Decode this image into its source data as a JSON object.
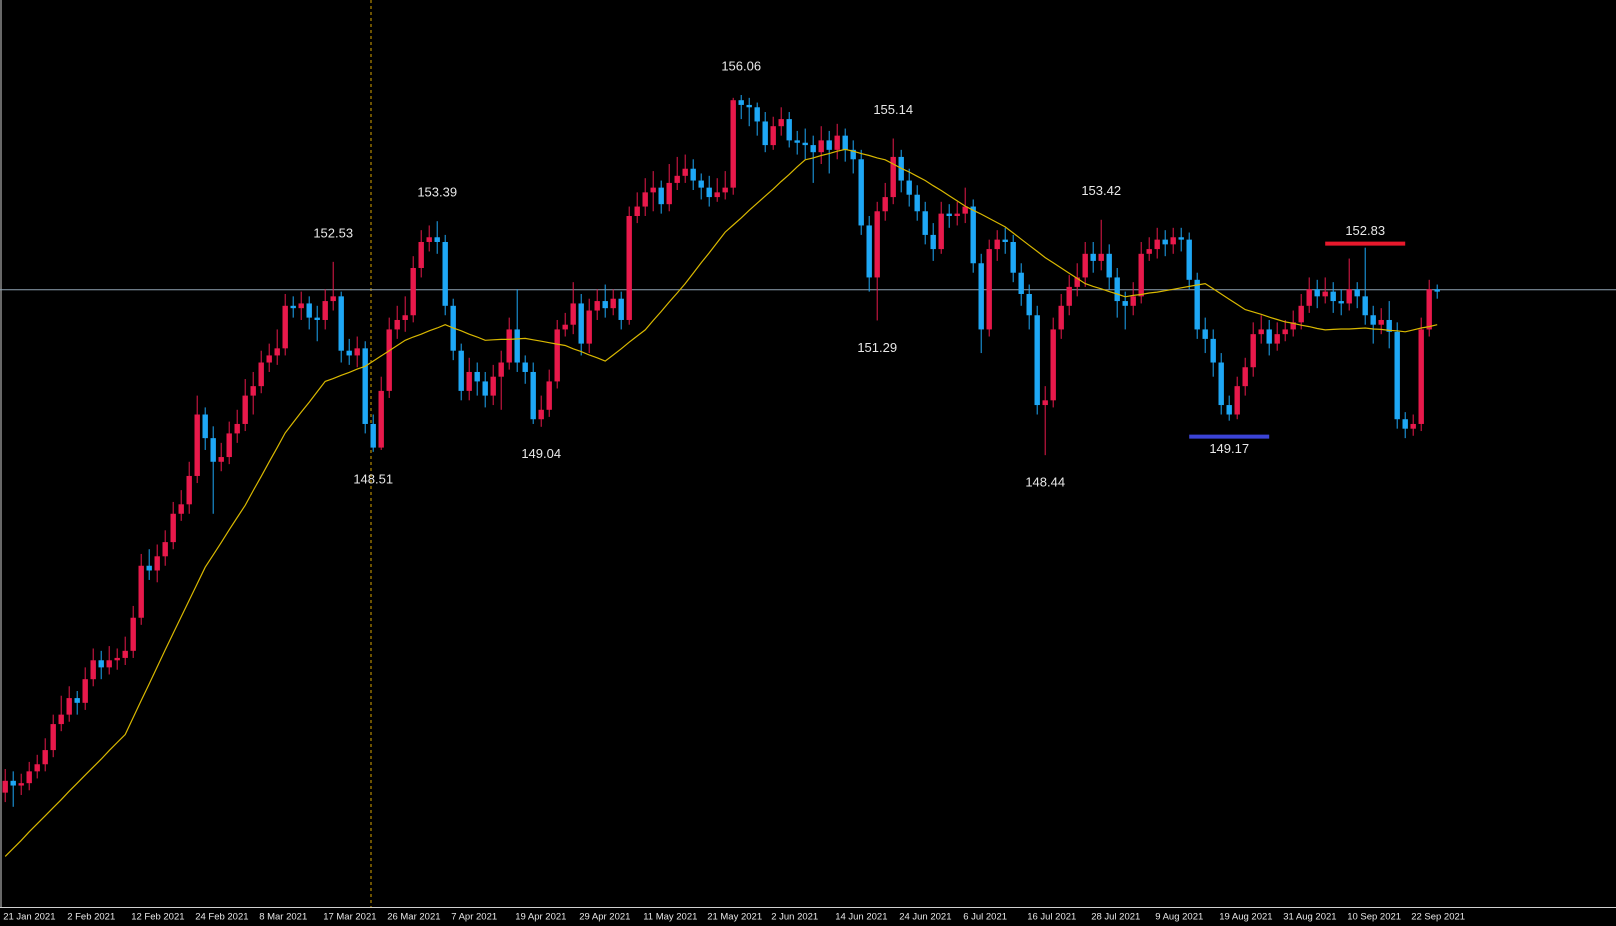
{
  "chart_data": {
    "type": "candlestick",
    "categories": [
      "21 Jan 2021",
      null,
      null,
      null,
      null,
      null,
      null,
      null,
      "2 Feb 2021",
      null,
      null,
      null,
      null,
      null,
      null,
      null,
      "12 Feb 2021",
      null,
      null,
      null,
      null,
      null,
      null,
      null,
      "24 Feb 2021",
      null,
      null,
      null,
      null,
      null,
      null,
      null,
      "8 Mar 2021",
      null,
      null,
      null,
      null,
      null,
      null,
      null,
      "17 Mar 2021",
      null,
      null,
      null,
      null,
      null,
      null,
      null,
      "26 Mar 2021",
      null,
      null,
      null,
      null,
      null,
      null,
      null,
      "7 Apr 2021",
      null,
      null,
      null,
      null,
      null,
      null,
      null,
      "19 Apr 2021",
      null,
      null,
      null,
      null,
      null,
      null,
      null,
      "29 Apr 2021",
      null,
      null,
      null,
      null,
      null,
      null,
      null,
      "11 May 2021",
      null,
      null,
      null,
      null,
      null,
      null,
      null,
      "21 May 2021",
      null,
      null,
      null,
      null,
      null,
      null,
      null,
      "2 Jun 2021",
      null,
      null,
      null,
      null,
      null,
      null,
      null,
      "14 Jun 2021",
      null,
      null,
      null,
      null,
      null,
      null,
      null,
      "24 Jun 2021",
      null,
      null,
      null,
      null,
      null,
      null,
      null,
      "6 Jul 2021",
      null,
      null,
      null,
      null,
      null,
      null,
      null,
      "16 Jul 2021",
      null,
      null,
      null,
      null,
      null,
      null,
      null,
      "28 Jul 2021",
      null,
      null,
      null,
      null,
      null,
      null,
      null,
      "9 Aug 2021",
      null,
      null,
      null,
      null,
      null,
      null,
      null,
      "19 Aug 2021",
      null,
      null,
      null,
      null,
      null,
      null,
      null,
      "31 Aug 2021",
      null,
      null,
      null,
      null,
      null,
      null,
      null,
      "10 Sep 2021",
      null,
      null,
      null,
      null,
      null,
      null,
      null,
      "22 Sep 2021",
      null,
      null,
      null
    ],
    "open": [
      141.3,
      141.55,
      141.45,
      141.5,
      141.75,
      141.9,
      142.2,
      142.75,
      142.95,
      143.3,
      143.2,
      143.7,
      144.1,
      143.95,
      144.1,
      144.15,
      144.3,
      145.0,
      146.1,
      146.0,
      146.3,
      146.6,
      147.2,
      147.4,
      148.0,
      149.3,
      148.8,
      148.3,
      148.4,
      148.9,
      149.1,
      149.7,
      149.9,
      150.4,
      150.55,
      150.7,
      151.6,
      151.55,
      151.65,
      151.35,
      151.3,
      151.7,
      151.8,
      150.65,
      150.55,
      150.7,
      149.1,
      148.6,
      149.8,
      151.1,
      151.3,
      151.4,
      152.4,
      152.95,
      153.05,
      152.95,
      151.6,
      150.65,
      149.8,
      150.2,
      150.0,
      149.7,
      150.1,
      150.4,
      151.1,
      150.4,
      150.2,
      149.2,
      149.4,
      150.0,
      151.1,
      151.2,
      151.65,
      150.8,
      151.5,
      151.7,
      151.55,
      151.75,
      151.3,
      153.5,
      153.7,
      154.0,
      154.1,
      153.75,
      154.2,
      154.35,
      154.5,
      154.25,
      154.1,
      153.9,
      154.0,
      154.1,
      155.95,
      155.85,
      155.8,
      155.5,
      155.0,
      155.4,
      155.55,
      155.1,
      155.05,
      155.0,
      154.85,
      155.1,
      154.9,
      155.2,
      154.9,
      154.7,
      153.3,
      152.2,
      153.6,
      153.9,
      154.75,
      154.25,
      153.95,
      153.6,
      153.1,
      152.8,
      153.55,
      153.5,
      153.55,
      153.7,
      152.5,
      151.1,
      152.8,
      153.0,
      152.95,
      152.3,
      151.85,
      151.4,
      149.5,
      149.6,
      151.1,
      151.6,
      152.0,
      152.2,
      152.7,
      152.55,
      152.7,
      152.2,
      151.7,
      151.6,
      151.8,
      152.7,
      152.8,
      153.0,
      152.9,
      153.05,
      153.0,
      152.15,
      151.1,
      150.9,
      150.4,
      149.5,
      149.3,
      149.9,
      150.3,
      151.0,
      151.1,
      150.8,
      151.0,
      151.1,
      151.25,
      151.6,
      151.95,
      151.8,
      151.9,
      151.7,
      151.65,
      151.95,
      151.8,
      151.4,
      151.2,
      151.3,
      151.05,
      149.2,
      149.0,
      149.1,
      151.1,
      151.95
    ],
    "high": [
      141.8,
      141.75,
      141.7,
      141.95,
      142.1,
      142.45,
      142.95,
      143.35,
      143.55,
      143.45,
      143.95,
      144.35,
      144.3,
      144.4,
      144.35,
      144.6,
      145.25,
      146.35,
      146.45,
      146.55,
      146.85,
      147.45,
      147.7,
      148.3,
      149.7,
      149.45,
      149.05,
      148.7,
      149.15,
      149.4,
      150.05,
      150.2,
      150.65,
      150.8,
      151.1,
      151.85,
      151.8,
      151.9,
      151.8,
      151.6,
      151.95,
      152.53,
      151.9,
      150.9,
      150.95,
      150.85,
      149.3,
      150.1,
      151.35,
      151.6,
      151.8,
      152.65,
      153.2,
      153.3,
      153.39,
      153.1,
      151.75,
      150.8,
      150.5,
      150.4,
      150.2,
      150.35,
      150.65,
      151.35,
      151.95,
      150.55,
      150.4,
      149.7,
      150.25,
      151.3,
      151.45,
      152.1,
      151.85,
      151.75,
      151.95,
      152.05,
      151.95,
      151.9,
      153.7,
      154.0,
      154.3,
      154.45,
      154.25,
      154.6,
      154.75,
      154.8,
      154.7,
      154.4,
      154.35,
      154.3,
      154.45,
      156.0,
      156.06,
      156.0,
      155.9,
      155.7,
      155.6,
      155.8,
      155.7,
      155.3,
      155.35,
      155.2,
      155.4,
      155.3,
      155.45,
      155.35,
      155.1,
      154.9,
      153.5,
      153.8,
      154.2,
      155.14,
      154.9,
      154.5,
      154.15,
      153.8,
      153.35,
      153.8,
      153.75,
      153.8,
      154.1,
      153.85,
      152.7,
      153.0,
      153.2,
      153.25,
      153.1,
      152.5,
      152.05,
      151.6,
      149.9,
      151.35,
      151.85,
      152.25,
      152.5,
      152.95,
      152.95,
      153.42,
      152.9,
      152.4,
      151.9,
      152.1,
      152.95,
      153.05,
      153.25,
      153.2,
      153.25,
      153.25,
      153.15,
      152.3,
      151.35,
      151.1,
      150.6,
      149.7,
      150.1,
      150.5,
      151.25,
      151.4,
      151.3,
      151.25,
      151.3,
      151.5,
      151.85,
      152.2,
      152.15,
      152.2,
      152.1,
      151.95,
      152.6,
      152.1,
      152.83,
      151.6,
      151.55,
      151.7,
      151.25,
      149.35,
      149.3,
      151.35,
      152.15,
      152.05
    ],
    "low": [
      141.1,
      141.0,
      141.25,
      141.35,
      141.6,
      141.75,
      142.05,
      142.6,
      142.8,
      142.95,
      143.05,
      143.55,
      143.7,
      143.8,
      143.9,
      144.0,
      144.15,
      144.85,
      145.8,
      145.75,
      146.1,
      146.45,
      147.05,
      147.2,
      147.85,
      148.55,
      147.2,
      148.1,
      148.25,
      148.7,
      148.95,
      149.3,
      149.75,
      150.2,
      150.35,
      150.55,
      151.35,
      151.3,
      151.1,
      150.85,
      151.1,
      151.5,
      150.4,
      150.35,
      150.3,
      148.9,
      148.51,
      148.55,
      149.65,
      150.9,
      151.05,
      151.25,
      152.2,
      152.75,
      152.7,
      151.4,
      150.45,
      149.6,
      149.6,
      149.7,
      149.45,
      149.5,
      149.4,
      150.25,
      150.2,
      149.95,
      149.1,
      149.04,
      149.25,
      149.85,
      150.95,
      151.0,
      150.55,
      150.6,
      151.3,
      151.35,
      151.4,
      151.1,
      151.2,
      153.35,
      153.5,
      153.6,
      153.55,
      153.6,
      154.05,
      154.2,
      154.05,
      153.85,
      153.7,
      153.8,
      153.85,
      153.95,
      155.55,
      155.4,
      155.2,
      154.85,
      154.9,
      155.2,
      154.95,
      154.8,
      154.7,
      154.2,
      154.6,
      154.4,
      154.7,
      154.65,
      154.4,
      153.1,
      151.9,
      151.29,
      153.4,
      153.75,
      154.0,
      153.7,
      153.4,
      152.9,
      152.55,
      152.7,
      153.25,
      153.3,
      153.35,
      152.3,
      150.6,
      150.95,
      152.55,
      152.7,
      152.1,
      151.6,
      151.1,
      149.3,
      148.44,
      149.45,
      150.9,
      151.4,
      151.8,
      152.0,
      152.3,
      152.35,
      151.95,
      151.35,
      151.1,
      151.4,
      151.65,
      152.55,
      152.6,
      152.65,
      152.7,
      152.75,
      151.95,
      150.9,
      150.6,
      150.1,
      149.3,
      149.17,
      149.2,
      149.7,
      150.1,
      150.8,
      150.55,
      150.65,
      150.85,
      150.95,
      151.1,
      151.45,
      151.55,
      151.65,
      151.45,
      151.4,
      151.5,
      151.55,
      151.2,
      150.8,
      151.0,
      150.7,
      149.0,
      148.8,
      148.85,
      148.95,
      150.95,
      151.75
    ],
    "close": [
      141.55,
      141.45,
      141.5,
      141.75,
      141.9,
      142.2,
      142.75,
      142.95,
      143.3,
      143.2,
      143.7,
      144.1,
      143.95,
      144.1,
      144.15,
      144.3,
      145.0,
      146.1,
      146.0,
      146.3,
      146.6,
      147.2,
      147.4,
      148.0,
      149.3,
      148.8,
      148.3,
      148.4,
      148.9,
      149.1,
      149.7,
      149.9,
      150.4,
      150.55,
      150.7,
      151.6,
      151.55,
      151.65,
      151.35,
      151.3,
      151.7,
      151.8,
      150.65,
      150.55,
      150.7,
      149.1,
      148.6,
      149.8,
      151.1,
      151.3,
      151.4,
      152.4,
      152.95,
      153.05,
      152.95,
      151.6,
      150.65,
      149.8,
      150.2,
      150.0,
      149.7,
      150.1,
      150.4,
      151.1,
      150.4,
      150.2,
      149.2,
      149.4,
      150.0,
      151.1,
      151.2,
      151.65,
      150.8,
      151.5,
      151.7,
      151.55,
      151.75,
      151.3,
      153.5,
      153.7,
      154.0,
      154.1,
      153.75,
      154.2,
      154.35,
      154.5,
      154.25,
      154.1,
      153.9,
      154.0,
      154.1,
      155.95,
      155.85,
      155.8,
      155.5,
      155.0,
      155.4,
      155.55,
      155.1,
      155.05,
      155.0,
      154.85,
      155.1,
      154.9,
      155.2,
      154.9,
      154.7,
      153.3,
      152.2,
      153.6,
      153.9,
      154.75,
      154.25,
      153.95,
      153.6,
      153.1,
      152.8,
      153.55,
      153.5,
      153.55,
      153.7,
      152.5,
      151.1,
      152.8,
      153.0,
      152.95,
      152.3,
      151.85,
      151.4,
      149.5,
      149.6,
      151.1,
      151.6,
      152.0,
      152.2,
      152.7,
      152.55,
      152.7,
      152.2,
      151.7,
      151.6,
      151.8,
      152.7,
      152.8,
      153.0,
      152.9,
      153.05,
      153.0,
      152.15,
      151.1,
      150.9,
      150.4,
      149.5,
      149.3,
      149.9,
      150.3,
      151.0,
      151.1,
      150.8,
      151.0,
      151.1,
      151.25,
      151.6,
      151.95,
      151.8,
      151.9,
      151.7,
      151.65,
      151.95,
      151.8,
      151.4,
      151.2,
      151.3,
      151.05,
      149.2,
      149.0,
      149.1,
      151.1,
      151.95,
      151.9
    ],
    "up_color": "#e8194b",
    "down_color": "#1ea7f5",
    "ma": {
      "color": "#d9b800",
      "values": [
        139.95,
        140.12,
        140.29,
        140.47,
        140.64,
        140.81,
        140.98,
        141.15,
        141.33,
        141.5,
        141.67,
        141.84,
        142.01,
        142.19,
        142.36,
        142.53,
        142.89,
        143.25,
        143.6,
        143.96,
        144.32,
        144.67,
        145.02,
        145.37,
        145.72,
        146.07,
        146.33,
        146.59,
        146.86,
        147.12,
        147.38,
        147.69,
        147.99,
        148.3,
        148.6,
        148.91,
        149.13,
        149.35,
        149.56,
        149.78,
        150.0,
        150.06,
        150.13,
        150.19,
        150.26,
        150.32,
        150.43,
        150.54,
        150.65,
        150.76,
        150.87,
        150.94,
        151.0,
        151.07,
        151.13,
        151.2,
        151.13,
        151.07,
        151.0,
        150.94,
        150.87,
        150.88,
        150.89,
        150.89,
        150.9,
        150.91,
        150.88,
        150.85,
        150.82,
        150.79,
        150.76,
        150.69,
        150.63,
        150.56,
        150.5,
        150.43,
        150.56,
        150.69,
        150.83,
        150.96,
        151.09,
        151.29,
        151.48,
        151.68,
        151.87,
        152.07,
        152.29,
        152.51,
        152.72,
        152.94,
        153.16,
        153.31,
        153.46,
        153.62,
        153.77,
        153.92,
        154.07,
        154.23,
        154.38,
        154.54,
        154.69,
        154.73,
        154.78,
        154.82,
        154.87,
        154.91,
        154.87,
        154.82,
        154.78,
        154.73,
        154.69,
        154.6,
        154.51,
        154.43,
        154.34,
        154.25,
        154.14,
        154.04,
        153.93,
        153.82,
        153.71,
        153.62,
        153.54,
        153.45,
        153.36,
        153.27,
        153.14,
        153.01,
        152.88,
        152.75,
        152.62,
        152.51,
        152.4,
        152.29,
        152.18,
        152.07,
        152.01,
        151.96,
        151.9,
        151.85,
        151.79,
        151.82,
        151.84,
        151.87,
        151.89,
        151.92,
        151.95,
        151.98,
        152.01,
        152.04,
        152.07,
        151.96,
        151.85,
        151.74,
        151.63,
        151.52,
        151.47,
        151.42,
        151.36,
        151.31,
        151.26,
        151.23,
        151.19,
        151.16,
        151.12,
        151.09,
        151.1,
        151.11,
        151.11,
        151.12,
        151.13,
        151.11,
        151.1,
        151.08,
        151.07,
        151.05,
        151.09,
        151.13,
        151.16,
        151.2
      ]
    },
    "hline": {
      "value": 151.94,
      "color": "#8fa3b3"
    },
    "annotations": [
      {
        "value": 152.53,
        "side": "high"
      },
      {
        "value": 148.51,
        "side": "low"
      },
      {
        "value": 153.39,
        "side": "high"
      },
      {
        "value": 149.04,
        "side": "low"
      },
      {
        "value": 156.06,
        "side": "high"
      },
      {
        "value": 155.14,
        "side": "high"
      },
      {
        "value": 151.29,
        "side": "low"
      },
      {
        "value": 148.44,
        "side": "low"
      },
      {
        "value": 153.42,
        "side": "high"
      },
      {
        "value": 149.17,
        "side": "low",
        "line_color": "#3b43d6"
      },
      {
        "value": 152.83,
        "side": "high",
        "line_color": "#e8192c"
      }
    ],
    "ylim": [
      138.88,
      158.07
    ]
  }
}
